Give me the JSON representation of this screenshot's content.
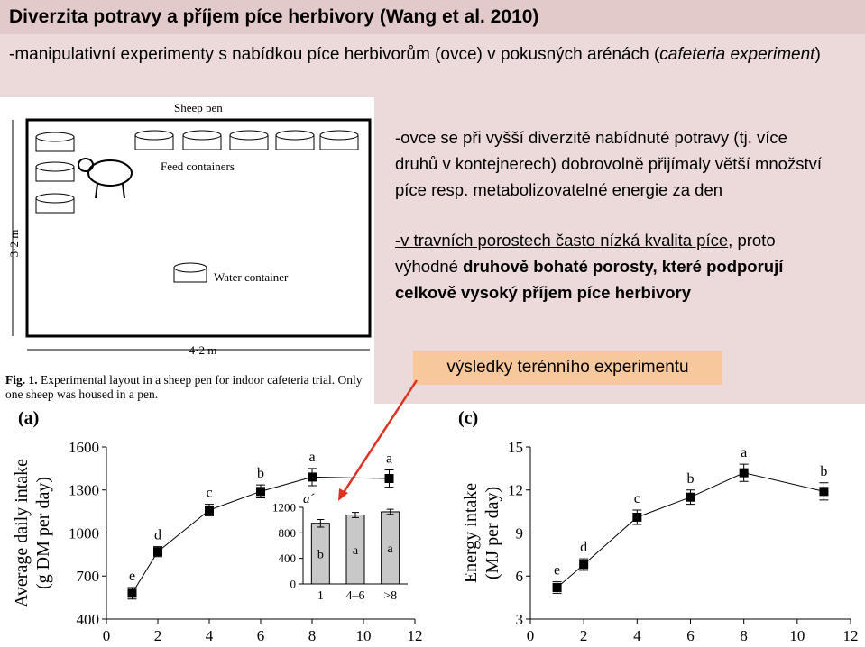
{
  "title": "Diverzita potravy a příjem píce herbivory (Wang et al. 2010)",
  "intro": {
    "text": "-manipulativní experimenty s nabídkou píce herbivorům (ovce) v pokusných arénách (",
    "italic": "cafeteria experiment",
    "end": ")"
  },
  "diagram": {
    "pen": "Sheep pen",
    "feed": "Feed containers",
    "water": "Water container",
    "height": "3·2 m",
    "width": "4·2 m",
    "caption_label": "Fig. 1.",
    "caption": "Experimental layout in a sheep pen for indoor cafeteria trial. Only one sheep was housed in a pen."
  },
  "notes": {
    "p1": "-ovce se při vyšší diverzitě nabídnuté potravy (tj. více druhů v kontejnerech) dobrovolně přijímaly větší množství píce resp. metabolizovatelné energie za den",
    "p2": {
      "underlined": "-v travních porostech často nízká kvalita píce",
      "comma": ",",
      "plain": "proto výhodné",
      "bold": "druhově bohaté porosty, které podporují celkově vysoký příjem píce herbivory"
    }
  },
  "callout": "výsledky terénního experimentu",
  "chart_data": [
    {
      "type": "line",
      "panel": "(a)",
      "ylabel": [
        "Average daily intake",
        "(g DM per day)"
      ],
      "x": [
        1,
        2,
        4,
        6,
        8,
        11
      ],
      "series": [
        {
          "color": "#000000",
          "values": [
            580,
            870,
            1160,
            1290,
            1390,
            1380
          ],
          "errors": [
            40,
            35,
            40,
            45,
            60,
            60
          ],
          "letters": [
            "e",
            "d",
            "c",
            "b",
            "a",
            "a"
          ]
        }
      ],
      "xlim": [
        0,
        12
      ],
      "xticks": [
        0,
        2,
        4,
        6,
        8,
        10,
        12
      ],
      "ylim": [
        400,
        1600
      ],
      "yticks": [
        400,
        700,
        1000,
        1300,
        1600
      ]
    },
    {
      "type": "line",
      "panel": "(c)",
      "ylabel": [
        "Energy intake",
        "(MJ per day)"
      ],
      "x": [
        1,
        2,
        4,
        6,
        8,
        11
      ],
      "series": [
        {
          "color": "#000000",
          "values": [
            5.2,
            6.8,
            10.1,
            11.5,
            13.2,
            11.9
          ],
          "errors": [
            0.4,
            0.4,
            0.5,
            0.5,
            0.6,
            0.6
          ],
          "letters": [
            "e",
            "d",
            "c",
            "b",
            "a",
            "b"
          ]
        }
      ],
      "xlim": [
        0,
        12
      ],
      "xticks": [
        0,
        2,
        4,
        6,
        8,
        10,
        12
      ],
      "ylim": [
        3,
        15
      ],
      "yticks": [
        3,
        6,
        9,
        12,
        15
      ]
    },
    {
      "type": "bar",
      "panel": "a´",
      "categories": [
        "1",
        "4–6",
        ">8"
      ],
      "values": [
        950,
        1080,
        1130
      ],
      "errors": [
        60,
        40,
        40
      ],
      "letters": [
        "b",
        "a",
        "a"
      ],
      "color": "#c8c8c8",
      "ylim": [
        0,
        1200
      ],
      "yticks": [
        0,
        400,
        800,
        1200
      ]
    }
  ]
}
